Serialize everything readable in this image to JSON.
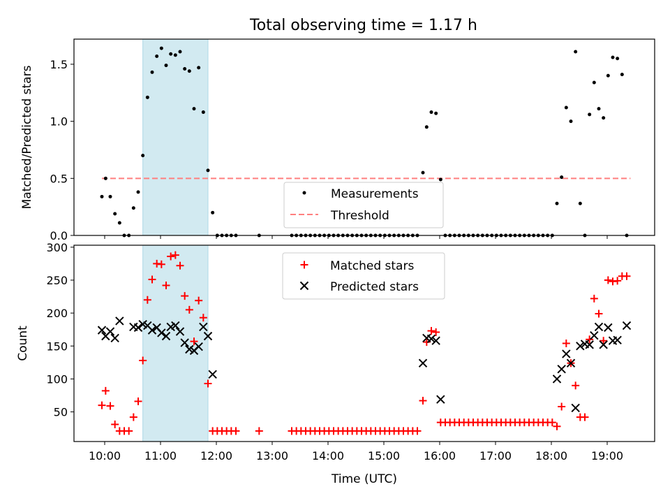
{
  "title": "Total observing time = 1.17 h",
  "colors": {
    "highlight": "#add8e6",
    "threshold": "#ff7f7f",
    "matched": "#ff0000",
    "predicted": "#000000",
    "measurement": "#000000"
  },
  "chart_data": [
    {
      "type": "scatter",
      "panel": "top",
      "ylabel": "Matched/Predicted stars",
      "xlim": [
        "09:27",
        "19:51"
      ],
      "ylim": [
        0,
        1.72
      ],
      "yticks": [
        0.0,
        0.5,
        1.0,
        1.5
      ],
      "ytick_labels": [
        "0.0",
        "0.5",
        "1.0",
        "1.5"
      ],
      "highlight_span": [
        "10:41",
        "11:51"
      ],
      "legend_position": "lower-center",
      "legend": [
        "Measurements",
        "Threshold"
      ],
      "threshold": {
        "name": "Threshold",
        "y": 0.5,
        "x": [
          "09:57",
          "19:25"
        ]
      },
      "series": [
        {
          "name": "Measurements",
          "points": [
            [
              "09:57",
              0.34
            ],
            [
              "10:01",
              0.5
            ],
            [
              "10:06",
              0.34
            ],
            [
              "10:11",
              0.19
            ],
            [
              "10:16",
              0.11
            ],
            [
              "10:21",
              0.0
            ],
            [
              "10:26",
              0.0
            ],
            [
              "10:31",
              0.24
            ],
            [
              "10:36",
              0.38
            ],
            [
              "10:41",
              0.7
            ],
            [
              "10:46",
              1.21
            ],
            [
              "10:51",
              1.43
            ],
            [
              "10:56",
              1.57
            ],
            [
              "11:01",
              1.64
            ],
            [
              "11:06",
              1.49
            ],
            [
              "11:11",
              1.59
            ],
            [
              "11:16",
              1.58
            ],
            [
              "11:21",
              1.61
            ],
            [
              "11:26",
              1.46
            ],
            [
              "11:31",
              1.44
            ],
            [
              "11:36",
              1.11
            ],
            [
              "11:41",
              1.47
            ],
            [
              "11:46",
              1.08
            ],
            [
              "11:51",
              0.57
            ],
            [
              "11:56",
              0.2
            ],
            [
              "12:01",
              0.0
            ],
            [
              "12:06",
              0.0
            ],
            [
              "12:11",
              0.0
            ],
            [
              "12:16",
              0.0
            ],
            [
              "12:21",
              0.0
            ],
            [
              "12:46",
              0.0
            ],
            [
              "13:21",
              0.0
            ],
            [
              "13:26",
              0.0
            ],
            [
              "13:31",
              0.0
            ],
            [
              "13:36",
              0.0
            ],
            [
              "13:41",
              0.0
            ],
            [
              "13:46",
              0.0
            ],
            [
              "13:51",
              0.0
            ],
            [
              "13:56",
              0.0
            ],
            [
              "14:01",
              0.0
            ],
            [
              "14:06",
              0.0
            ],
            [
              "14:11",
              0.0
            ],
            [
              "14:16",
              0.0
            ],
            [
              "14:21",
              0.0
            ],
            [
              "14:26",
              0.0
            ],
            [
              "14:31",
              0.0
            ],
            [
              "14:36",
              0.0
            ],
            [
              "14:41",
              0.0
            ],
            [
              "14:46",
              0.0
            ],
            [
              "14:51",
              0.0
            ],
            [
              "14:56",
              0.0
            ],
            [
              "15:01",
              0.0
            ],
            [
              "15:06",
              0.0
            ],
            [
              "15:11",
              0.0
            ],
            [
              "15:16",
              0.0
            ],
            [
              "15:21",
              0.0
            ],
            [
              "15:26",
              0.0
            ],
            [
              "15:31",
              0.0
            ],
            [
              "15:36",
              0.0
            ],
            [
              "15:42",
              0.55
            ],
            [
              "15:46",
              0.95
            ],
            [
              "15:51",
              1.08
            ],
            [
              "15:56",
              1.07
            ],
            [
              "16:01",
              0.49
            ],
            [
              "16:06",
              0.0
            ],
            [
              "16:11",
              0.0
            ],
            [
              "16:16",
              0.0
            ],
            [
              "16:21",
              0.0
            ],
            [
              "16:26",
              0.0
            ],
            [
              "16:31",
              0.0
            ],
            [
              "16:36",
              0.0
            ],
            [
              "16:41",
              0.0
            ],
            [
              "16:46",
              0.0
            ],
            [
              "16:51",
              0.0
            ],
            [
              "16:56",
              0.0
            ],
            [
              "17:01",
              0.0
            ],
            [
              "17:06",
              0.0
            ],
            [
              "17:11",
              0.0
            ],
            [
              "17:16",
              0.0
            ],
            [
              "17:21",
              0.0
            ],
            [
              "17:26",
              0.0
            ],
            [
              "17:31",
              0.0
            ],
            [
              "17:36",
              0.0
            ],
            [
              "17:41",
              0.0
            ],
            [
              "17:46",
              0.0
            ],
            [
              "17:51",
              0.0
            ],
            [
              "17:56",
              0.0
            ],
            [
              "18:01",
              0.0
            ],
            [
              "18:06",
              0.28
            ],
            [
              "18:11",
              0.51
            ],
            [
              "18:16",
              1.12
            ],
            [
              "18:21",
              1.0
            ],
            [
              "18:26",
              1.61
            ],
            [
              "18:31",
              0.28
            ],
            [
              "18:36",
              0.0
            ],
            [
              "18:41",
              1.06
            ],
            [
              "18:46",
              1.34
            ],
            [
              "18:51",
              1.11
            ],
            [
              "18:56",
              1.03
            ],
            [
              "19:01",
              1.4
            ],
            [
              "19:06",
              1.56
            ],
            [
              "19:11",
              1.55
            ],
            [
              "19:16",
              1.41
            ],
            [
              "19:21",
              0.0
            ]
          ]
        }
      ]
    },
    {
      "type": "scatter",
      "panel": "bottom",
      "xlabel": "Time (UTC)",
      "ylabel": "Count",
      "xlim": [
        "09:27",
        "19:51"
      ],
      "ylim": [
        5,
        303
      ],
      "xticks": [
        "10:00",
        "11:00",
        "12:00",
        "13:00",
        "14:00",
        "15:00",
        "16:00",
        "17:00",
        "18:00",
        "19:00"
      ],
      "yticks": [
        50,
        100,
        150,
        200,
        250,
        300
      ],
      "ytick_labels": [
        "50",
        "100",
        "150",
        "200",
        "250",
        "300"
      ],
      "highlight_span": [
        "10:41",
        "11:51"
      ],
      "legend_position": "upper-center",
      "legend": [
        "Matched stars",
        "Predicted stars"
      ],
      "series": [
        {
          "name": "Matched stars",
          "marker": "plus",
          "points": [
            [
              "09:57",
              60
            ],
            [
              "10:01",
              82
            ],
            [
              "10:06",
              59
            ],
            [
              "10:11",
              31
            ],
            [
              "10:16",
              21
            ],
            [
              "10:21",
              21
            ],
            [
              "10:26",
              21
            ],
            [
              "10:31",
              42
            ],
            [
              "10:36",
              66
            ],
            [
              "10:41",
              128
            ],
            [
              "10:46",
              220
            ],
            [
              "10:51",
              251
            ],
            [
              "10:56",
              275
            ],
            [
              "11:01",
              274
            ],
            [
              "11:06",
              242
            ],
            [
              "11:11",
              286
            ],
            [
              "11:16",
              288
            ],
            [
              "11:21",
              272
            ],
            [
              "11:26",
              226
            ],
            [
              "11:31",
              205
            ],
            [
              "11:36",
              157
            ],
            [
              "11:41",
              219
            ],
            [
              "11:46",
              193
            ],
            [
              "11:51",
              93
            ],
            [
              "11:56",
              21
            ],
            [
              "12:01",
              21
            ],
            [
              "12:06",
              21
            ],
            [
              "12:11",
              21
            ],
            [
              "12:16",
              21
            ],
            [
              "12:21",
              21
            ],
            [
              "12:46",
              21
            ],
            [
              "13:21",
              21
            ],
            [
              "13:26",
              21
            ],
            [
              "13:31",
              21
            ],
            [
              "13:36",
              21
            ],
            [
              "13:41",
              21
            ],
            [
              "13:46",
              21
            ],
            [
              "13:51",
              21
            ],
            [
              "13:56",
              21
            ],
            [
              "14:01",
              21
            ],
            [
              "14:06",
              21
            ],
            [
              "14:11",
              21
            ],
            [
              "14:16",
              21
            ],
            [
              "14:21",
              21
            ],
            [
              "14:26",
              21
            ],
            [
              "14:31",
              21
            ],
            [
              "14:36",
              21
            ],
            [
              "14:41",
              21
            ],
            [
              "14:46",
              21
            ],
            [
              "14:51",
              21
            ],
            [
              "14:56",
              21
            ],
            [
              "15:01",
              21
            ],
            [
              "15:06",
              21
            ],
            [
              "15:11",
              21
            ],
            [
              "15:16",
              21
            ],
            [
              "15:21",
              21
            ],
            [
              "15:26",
              21
            ],
            [
              "15:31",
              21
            ],
            [
              "15:36",
              21
            ],
            [
              "15:42",
              67
            ],
            [
              "15:46",
              156
            ],
            [
              "15:51",
              173
            ],
            [
              "15:56",
              171
            ],
            [
              "16:01",
              34
            ],
            [
              "16:06",
              34
            ],
            [
              "16:11",
              34
            ],
            [
              "16:16",
              34
            ],
            [
              "16:21",
              34
            ],
            [
              "16:26",
              34
            ],
            [
              "16:31",
              34
            ],
            [
              "16:36",
              34
            ],
            [
              "16:41",
              34
            ],
            [
              "16:46",
              34
            ],
            [
              "16:51",
              34
            ],
            [
              "16:56",
              34
            ],
            [
              "17:01",
              34
            ],
            [
              "17:06",
              34
            ],
            [
              "17:11",
              34
            ],
            [
              "17:16",
              34
            ],
            [
              "17:21",
              34
            ],
            [
              "17:26",
              34
            ],
            [
              "17:31",
              34
            ],
            [
              "17:36",
              34
            ],
            [
              "17:41",
              34
            ],
            [
              "17:46",
              34
            ],
            [
              "17:51",
              34
            ],
            [
              "17:56",
              34
            ],
            [
              "18:01",
              34
            ],
            [
              "18:06",
              28
            ],
            [
              "18:11",
              58
            ],
            [
              "18:16",
              154
            ],
            [
              "18:21",
              124
            ],
            [
              "18:26",
              90
            ],
            [
              "18:31",
              42
            ],
            [
              "18:36",
              42
            ],
            [
              "18:41",
              160
            ],
            [
              "18:46",
              222
            ],
            [
              "18:51",
              199
            ],
            [
              "18:56",
              158
            ],
            [
              "19:01",
              250
            ],
            [
              "19:06",
              248
            ],
            [
              "19:11",
              249
            ],
            [
              "19:16",
              256
            ],
            [
              "19:21",
              256
            ]
          ]
        },
        {
          "name": "Predicted stars",
          "marker": "x",
          "points": [
            [
              "09:57",
              174
            ],
            [
              "10:01",
              165
            ],
            [
              "10:06",
              172
            ],
            [
              "10:11",
              162
            ],
            [
              "10:16",
              188
            ],
            [
              "10:31",
              179
            ],
            [
              "10:36",
              178
            ],
            [
              "10:41",
              183
            ],
            [
              "10:46",
              181
            ],
            [
              "10:51",
              174
            ],
            [
              "10:56",
              178
            ],
            [
              "11:01",
              170
            ],
            [
              "11:06",
              165
            ],
            [
              "11:11",
              179
            ],
            [
              "11:16",
              181
            ],
            [
              "11:21",
              172
            ],
            [
              "11:26",
              155
            ],
            [
              "11:31",
              145
            ],
            [
              "11:36",
              143
            ],
            [
              "11:41",
              149
            ],
            [
              "11:46",
              179
            ],
            [
              "11:51",
              165
            ],
            [
              "11:56",
              107
            ],
            [
              "15:42",
              124
            ],
            [
              "15:46",
              162
            ],
            [
              "15:51",
              161
            ],
            [
              "15:56",
              158
            ],
            [
              "16:01",
              69
            ],
            [
              "18:06",
              100
            ],
            [
              "18:11",
              115
            ],
            [
              "18:16",
              138
            ],
            [
              "18:21",
              124
            ],
            [
              "18:26",
              56
            ],
            [
              "18:31",
              150
            ],
            [
              "18:36",
              153
            ],
            [
              "18:41",
              152
            ],
            [
              "18:46",
              166
            ],
            [
              "18:51",
              179
            ],
            [
              "18:56",
              152
            ],
            [
              "19:01",
              178
            ],
            [
              "19:06",
              158
            ],
            [
              "19:11",
              159
            ],
            [
              "19:21",
              181
            ]
          ]
        }
      ]
    }
  ]
}
